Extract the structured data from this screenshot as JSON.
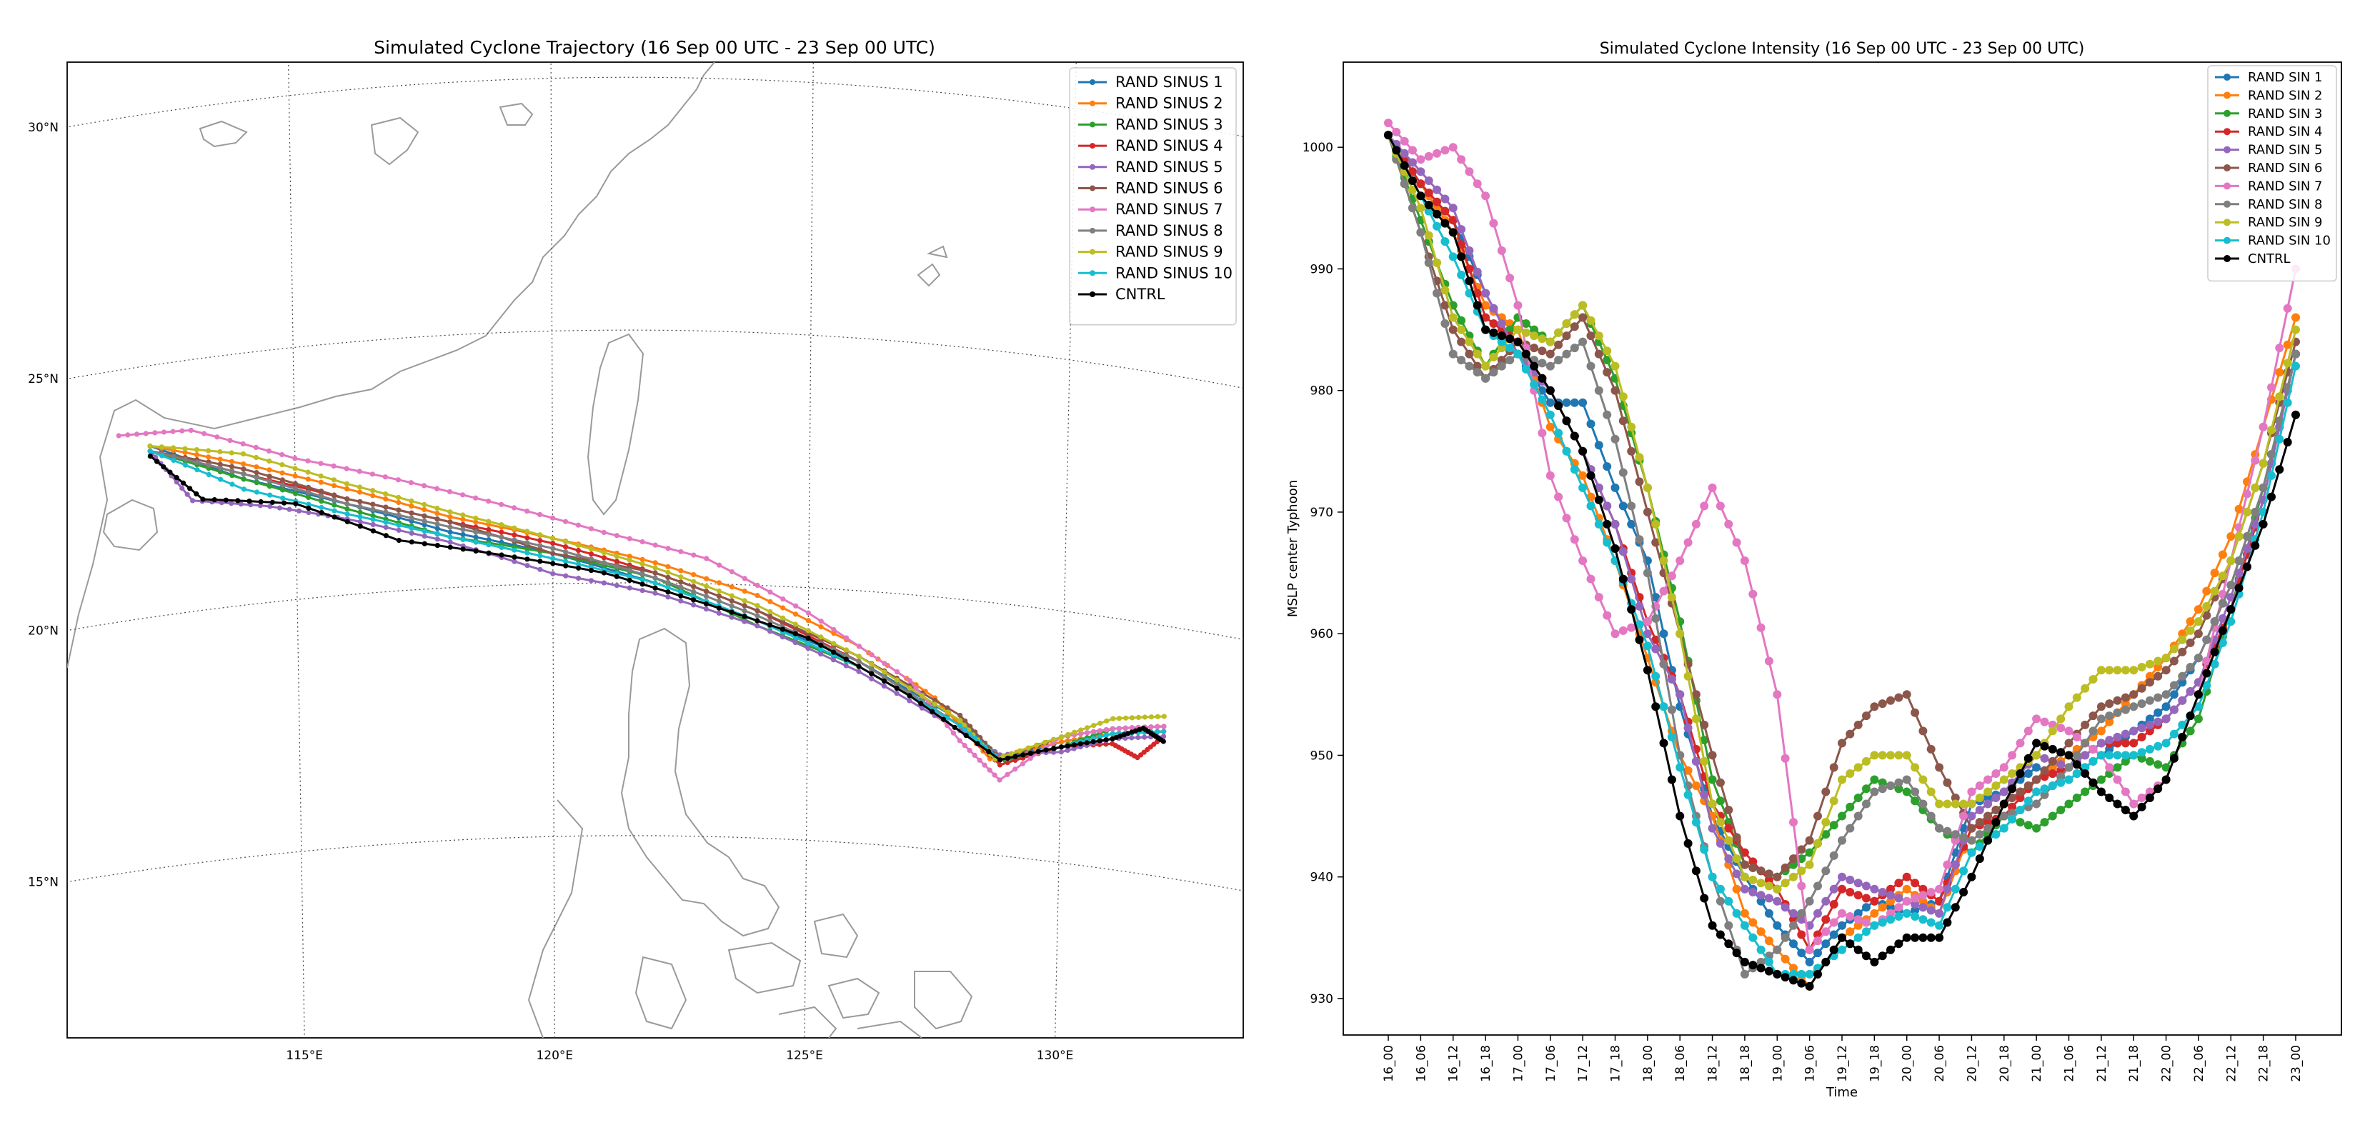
{
  "chart_data": [
    {
      "type": "line",
      "chart": "map-trajectory",
      "title": "Simulated Cyclone Trajectory (16 Sep 00 UTC - 23 Sep 00 UTC)",
      "x_unit": "longitude (deg E)",
      "y_unit": "latitude (deg N)",
      "xlim": [
        110.5,
        133.5
      ],
      "ylim": [
        11.0,
        30.3
      ],
      "lon_ticks": [
        115,
        120,
        125,
        130
      ],
      "lon_tick_labels": [
        "115°E",
        "120°E",
        "125°E",
        "130°E"
      ],
      "lat_ticks": [
        30,
        25,
        20,
        15
      ],
      "lat_tick_labels": [
        "30°N",
        "25°N",
        "20°N",
        "15°N"
      ],
      "grid": true,
      "legend_position": "top-right",
      "series": [
        {
          "name": "RAND SINUS 1",
          "color": "#1f77b4",
          "points": [
            [
              112.2,
              23.4
            ],
            [
              114,
              22.5
            ],
            [
              116,
              21.8
            ],
            [
              118,
              21.1
            ],
            [
              120,
              20.6
            ],
            [
              122,
              20.0
            ],
            [
              124,
              19.3
            ],
            [
              126,
              18.6
            ],
            [
              128,
              17.6
            ],
            [
              128.8,
              16.9
            ],
            [
              130,
              17.4
            ],
            [
              131,
              17.7
            ],
            [
              132,
              17.9
            ]
          ]
        },
        {
          "name": "RAND SINUS 2",
          "color": "#ff7f0e",
          "points": [
            [
              112.2,
              23.4
            ],
            [
              114,
              22.8
            ],
            [
              116,
              22.1
            ],
            [
              118,
              21.4
            ],
            [
              120,
              20.9
            ],
            [
              122,
              20.4
            ],
            [
              124,
              19.8
            ],
            [
              126,
              18.9
            ],
            [
              127.5,
              18.0
            ],
            [
              128.6,
              16.9
            ],
            [
              130,
              17.4
            ],
            [
              131,
              17.7
            ],
            [
              132,
              17.9
            ]
          ]
        },
        {
          "name": "RAND SINUS 3",
          "color": "#2ca02c",
          "points": [
            [
              112.2,
              23.3
            ],
            [
              114,
              22.5
            ],
            [
              116,
              21.7
            ],
            [
              118,
              21.0
            ],
            [
              120,
              20.6
            ],
            [
              122,
              20.1
            ],
            [
              124,
              19.2
            ],
            [
              126,
              18.5
            ],
            [
              128,
              17.5
            ],
            [
              128.9,
              16.9
            ],
            [
              130,
              17.3
            ],
            [
              131,
              17.8
            ],
            [
              132,
              18.0
            ]
          ]
        },
        {
          "name": "RAND SINUS 4",
          "color": "#d62728",
          "points": [
            [
              112.2,
              23.3
            ],
            [
              114,
              22.6
            ],
            [
              116,
              21.9
            ],
            [
              118,
              21.3
            ],
            [
              120,
              20.8
            ],
            [
              122,
              20.2
            ],
            [
              124,
              19.5
            ],
            [
              126,
              18.6
            ],
            [
              128,
              17.5
            ],
            [
              128.8,
              16.8
            ],
            [
              130,
              17.3
            ],
            [
              131,
              17.5
            ],
            [
              131.5,
              17.3
            ],
            [
              132,
              17.8
            ]
          ]
        },
        {
          "name": "RAND SINUS 5",
          "color": "#9467bd",
          "points": [
            [
              112.2,
              23.3
            ],
            [
              113,
              22.2
            ],
            [
              114.5,
              21.9
            ],
            [
              116,
              21.5
            ],
            [
              118,
              20.9
            ],
            [
              120,
              20.2
            ],
            [
              122,
              19.8
            ],
            [
              124,
              19.2
            ],
            [
              126,
              18.4
            ],
            [
              128,
              17.4
            ],
            [
              128.8,
              17.0
            ],
            [
              130,
              17.2
            ],
            [
              131,
              17.6
            ],
            [
              132,
              17.8
            ]
          ]
        },
        {
          "name": "RAND SINUS 6",
          "color": "#8c564b",
          "points": [
            [
              112.2,
              23.3
            ],
            [
              114,
              22.7
            ],
            [
              116,
              21.9
            ],
            [
              118,
              21.3
            ],
            [
              120,
              20.6
            ],
            [
              122,
              20.2
            ],
            [
              124,
              19.5
            ],
            [
              126,
              18.7
            ],
            [
              128,
              17.7
            ],
            [
              128.8,
              16.9
            ],
            [
              130,
              17.5
            ],
            [
              131,
              17.8
            ],
            [
              132,
              18.0
            ]
          ]
        },
        {
          "name": "RAND SINUS 7",
          "color": "#e377c2",
          "points": [
            [
              111.6,
              23.7
            ],
            [
              113,
              23.6
            ],
            [
              115,
              22.8
            ],
            [
              117,
              22.2
            ],
            [
              119,
              21.6
            ],
            [
              121,
              21.0
            ],
            [
              123,
              20.5
            ],
            [
              125,
              19.5
            ],
            [
              127,
              18.3
            ],
            [
              128,
              17.2
            ],
            [
              128.8,
              16.5
            ],
            [
              130,
              17.5
            ],
            [
              131,
              17.8
            ],
            [
              132,
              18.0
            ]
          ]
        },
        {
          "name": "RAND SINUS 8",
          "color": "#7f7f7f",
          "points": [
            [
              112.2,
              23.3
            ],
            [
              114,
              22.6
            ],
            [
              116,
              21.8
            ],
            [
              118,
              21.2
            ],
            [
              120,
              20.7
            ],
            [
              122,
              20.1
            ],
            [
              124,
              19.4
            ],
            [
              126,
              18.6
            ],
            [
              128,
              17.5
            ],
            [
              128.8,
              16.9
            ],
            [
              130,
              17.3
            ],
            [
              131,
              17.7
            ],
            [
              132,
              17.9
            ]
          ]
        },
        {
          "name": "RAND SINUS 9",
          "color": "#bcbd22",
          "points": [
            [
              112.2,
              23.4
            ],
            [
              114,
              23.0
            ],
            [
              116,
              22.2
            ],
            [
              118,
              21.5
            ],
            [
              120,
              20.9
            ],
            [
              122,
              20.3
            ],
            [
              124,
              19.6
            ],
            [
              126,
              18.7
            ],
            [
              128,
              17.6
            ],
            [
              128.7,
              16.9
            ],
            [
              130,
              17.5
            ],
            [
              131,
              18.0
            ],
            [
              132,
              18.2
            ]
          ]
        },
        {
          "name": "RAND SINUS 10",
          "color": "#17becf",
          "points": [
            [
              112.2,
              23.3
            ],
            [
              114,
              22.3
            ],
            [
              116,
              21.6
            ],
            [
              118,
              21.0
            ],
            [
              120,
              20.5
            ],
            [
              122,
              20.0
            ],
            [
              124,
              19.3
            ],
            [
              126,
              18.5
            ],
            [
              128,
              17.5
            ],
            [
              128.8,
              16.9
            ],
            [
              130,
              17.3
            ],
            [
              131,
              17.7
            ],
            [
              132,
              17.9
            ]
          ]
        },
        {
          "name": "CNTRL",
          "color": "#000000",
          "points": [
            [
              112.2,
              23.2
            ],
            [
              113.2,
              22.2
            ],
            [
              115,
              21.9
            ],
            [
              117,
              21.0
            ],
            [
              119,
              20.6
            ],
            [
              121,
              20.2
            ],
            [
              123,
              19.6
            ],
            [
              125,
              19.0
            ],
            [
              127,
              18.0
            ],
            [
              128.8,
              16.9
            ],
            [
              130,
              17.3
            ],
            [
              131,
              17.6
            ],
            [
              131.6,
              17.9
            ],
            [
              132,
              17.7
            ]
          ]
        }
      ]
    },
    {
      "type": "line",
      "chart": "intensity",
      "title": "Simulated Cyclone Intensity (16 Sep 00 UTC - 23 Sep 00 UTC)",
      "xlabel": "Time",
      "ylabel": "MSLP center Typhoon",
      "categories": [
        "16_00",
        "16_06",
        "16_12",
        "16_18",
        "17_00",
        "17_06",
        "17_12",
        "17_18",
        "18_00",
        "18_06",
        "18_12",
        "18_18",
        "19_00",
        "19_06",
        "19_12",
        "19_18",
        "20_00",
        "20_06",
        "20_12",
        "20_18",
        "21_00",
        "21_06",
        "21_12",
        "21_18",
        "22_00",
        "22_06",
        "22_12",
        "22_18",
        "23_00"
      ],
      "yticks": [
        930,
        940,
        950,
        960,
        970,
        980,
        990,
        1000
      ],
      "ylim": [
        927,
        1007
      ],
      "grid": false,
      "legend_position": "top-right",
      "series": [
        {
          "name": "RAND SIN 1",
          "color": "#1f77b4",
          "values": [
            1001,
            997,
            994,
            988,
            983,
            979,
            979,
            972,
            966,
            954,
            945,
            940,
            936,
            933,
            936,
            938,
            937,
            938,
            946,
            947,
            949,
            948,
            950,
            952,
            954,
            958,
            964,
            972,
            983
          ]
        },
        {
          "name": "RAND SIN 2",
          "color": "#ff7f0e",
          "values": [
            1001,
            997,
            993,
            987,
            985,
            977,
            973,
            966,
            958,
            950,
            945,
            937,
            934,
            931,
            935,
            937,
            939,
            937,
            944,
            946,
            948,
            950,
            952,
            955,
            958,
            962,
            968,
            977,
            986
          ]
        },
        {
          "name": "RAND SIN 3",
          "color": "#2ca02c",
          "values": [
            1001,
            994,
            987,
            982,
            986,
            984,
            987,
            981,
            972,
            961,
            948,
            941,
            940,
            942,
            945,
            948,
            947,
            944,
            942,
            945,
            944,
            946,
            948,
            950,
            949,
            953,
            962,
            972,
            983
          ]
        },
        {
          "name": "RAND SIN 4",
          "color": "#d62728",
          "values": [
            1001,
            997,
            994,
            986,
            984,
            980,
            975,
            969,
            961,
            955,
            946,
            942,
            939,
            934,
            939,
            938,
            940,
            938,
            944,
            945,
            948,
            949,
            951,
            951,
            953,
            956,
            962,
            971,
            983
          ]
        },
        {
          "name": "RAND SIN 5",
          "color": "#9467bd",
          "values": [
            1001,
            998,
            995,
            988,
            983,
            980,
            975,
            969,
            960,
            955,
            944,
            939,
            938,
            936,
            940,
            939,
            938,
            937,
            945,
            947,
            950,
            949,
            951,
            952,
            953,
            956,
            963,
            971,
            983
          ]
        },
        {
          "name": "RAND SIN 6",
          "color": "#8c564b",
          "values": [
            1001,
            993,
            985,
            981,
            984,
            983,
            986,
            980,
            970,
            960,
            950,
            941,
            940,
            943,
            951,
            954,
            955,
            949,
            944,
            946,
            948,
            951,
            954,
            955,
            957,
            960,
            966,
            974,
            984
          ]
        },
        {
          "name": "RAND SIN 7",
          "color": "#e377c2",
          "values": [
            1002,
            999,
            1000,
            996,
            987,
            973,
            966,
            960,
            961,
            966,
            972,
            966,
            955,
            934,
            937,
            936,
            938,
            939,
            947,
            949,
            953,
            952,
            950,
            946,
            948,
            955,
            966,
            977,
            990
          ]
        },
        {
          "name": "RAND SIN 8",
          "color": "#7f7f7f",
          "values": [
            1001,
            993,
            983,
            981,
            983,
            982,
            984,
            976,
            965,
            950,
            940,
            932,
            934,
            938,
            943,
            947,
            948,
            944,
            943,
            945,
            946,
            949,
            953,
            954,
            955,
            958,
            964,
            972,
            983
          ]
        },
        {
          "name": "RAND SIN 9",
          "color": "#bcbd22",
          "values": [
            1001,
            995,
            986,
            982,
            985,
            984,
            987,
            982,
            972,
            960,
            946,
            940,
            939,
            941,
            948,
            950,
            950,
            946,
            946,
            948,
            950,
            954,
            957,
            957,
            958,
            961,
            966,
            974,
            985
          ]
        },
        {
          "name": "RAND SIN 10",
          "color": "#17becf",
          "values": [
            1001,
            996,
            991,
            985,
            983,
            978,
            972,
            966,
            959,
            949,
            940,
            936,
            932,
            932,
            934,
            936,
            937,
            936,
            942,
            944,
            947,
            948,
            950,
            950,
            951,
            954,
            961,
            970,
            982
          ]
        },
        {
          "name": "CNTRL",
          "color": "#000000",
          "values": [
            1001,
            996,
            993,
            985,
            984,
            980,
            975,
            967,
            957,
            945,
            936,
            933,
            932,
            931,
            935,
            933,
            935,
            935,
            940,
            946,
            951,
            950,
            947,
            945,
            948,
            955,
            962,
            969,
            978
          ]
        }
      ]
    }
  ]
}
